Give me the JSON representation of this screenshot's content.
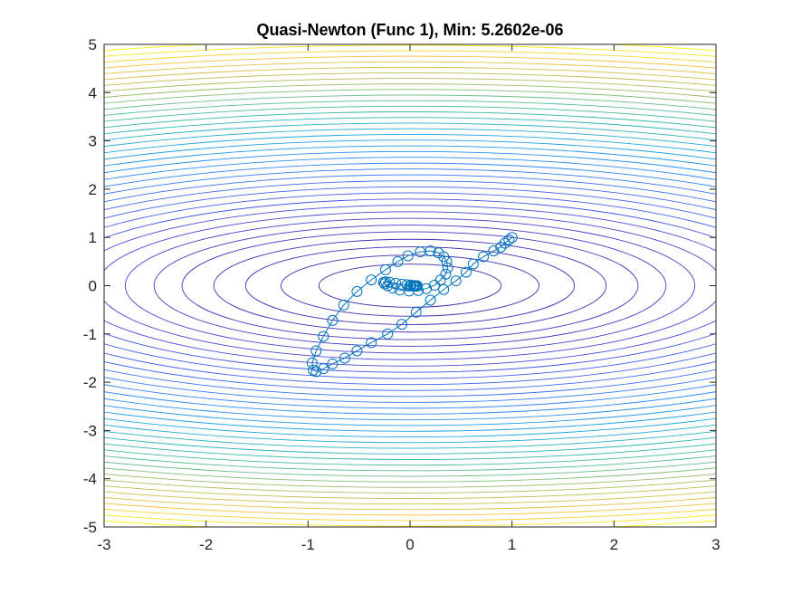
{
  "chart_data": {
    "type": "line",
    "subtype": "contour-with-trajectory",
    "title": "Quasi-Newton (Func 1), Min: 5.2602e-06",
    "xlabel": "",
    "ylabel": "",
    "xlim": [
      -3,
      3
    ],
    "ylim": [
      -5,
      5
    ],
    "x_ticks": [
      -3,
      -2,
      -1,
      0,
      1,
      2,
      3
    ],
    "x_tick_labels": [
      "-3",
      "-2",
      "-1",
      "0",
      "1",
      "2",
      "3"
    ],
    "y_ticks": [
      -5,
      -4,
      -3,
      -2,
      -1,
      0,
      1,
      2,
      3,
      4,
      5
    ],
    "y_tick_labels": [
      "-5",
      "-4",
      "-3",
      "-2",
      "-1",
      "0",
      "1",
      "2",
      "3",
      "4",
      "5"
    ],
    "grid": false,
    "contour": {
      "function": "x^2 + 4*y^2",
      "levels": [
        0.8,
        1.6,
        2.6,
        3.7,
        5.0,
        6.3,
        7.8,
        9.4,
        11.1,
        12.9,
        14.8,
        16.8,
        18.9,
        21.1,
        23.4,
        25.8,
        28.3,
        30.9,
        33.6,
        36.4,
        39.3,
        42.3,
        45.4,
        48.6,
        51.9,
        55.3,
        58.8,
        62.4,
        66.1,
        69.9,
        73.8,
        77.8,
        81.9,
        86.1,
        90.4,
        94.8,
        99.3,
        103.9
      ],
      "colormap": [
        "#3d26a8",
        "#4658e8",
        "#2f84f6",
        "#1ca9dd",
        "#33b8a7",
        "#7cbf7a",
        "#c2bd4e",
        "#f6c33a",
        "#f9fb0e"
      ]
    },
    "series": [
      {
        "name": "trajectory",
        "color": "#0072bd",
        "marker": "circle",
        "x": [
          1.0,
          0.97,
          0.93,
          0.89,
          0.82,
          0.72,
          0.62,
          0.55,
          0.45,
          0.33,
          0.2,
          0.06,
          -0.08,
          -0.22,
          -0.38,
          -0.52,
          -0.64,
          -0.76,
          -0.85,
          -0.92,
          -0.95,
          -0.96,
          -0.92,
          -0.85,
          -0.76,
          -0.65,
          -0.52,
          -0.38,
          -0.24,
          -0.12,
          -0.02,
          0.1,
          0.2,
          0.28,
          0.33,
          0.36,
          0.37,
          0.35,
          0.3,
          0.24,
          0.16,
          0.08,
          -0.01,
          -0.1,
          -0.17,
          -0.22,
          -0.25,
          -0.26,
          -0.24,
          -0.2,
          -0.14,
          -0.08,
          -0.03,
          0.01,
          0.04,
          0.06,
          0.07,
          0.07,
          0.05,
          0.03,
          0.01,
          0.0,
          0.0
        ],
        "y": [
          1.0,
          0.95,
          0.88,
          0.8,
          0.72,
          0.6,
          0.45,
          0.28,
          0.1,
          -0.08,
          -0.3,
          -0.55,
          -0.8,
          -1.0,
          -1.18,
          -1.35,
          -1.5,
          -1.62,
          -1.72,
          -1.78,
          -1.75,
          -1.6,
          -1.35,
          -1.05,
          -0.72,
          -0.4,
          -0.12,
          0.12,
          0.33,
          0.5,
          0.62,
          0.7,
          0.72,
          0.68,
          0.6,
          0.5,
          0.37,
          0.24,
          0.12,
          0.01,
          -0.06,
          -0.1,
          -0.11,
          -0.09,
          -0.05,
          0.0,
          0.04,
          0.07,
          0.08,
          0.07,
          0.05,
          0.03,
          0.02,
          0.01,
          0.0,
          -0.01,
          -0.01,
          0.0,
          0.0,
          0.0,
          0.0,
          0.0,
          0.0
        ]
      }
    ]
  }
}
